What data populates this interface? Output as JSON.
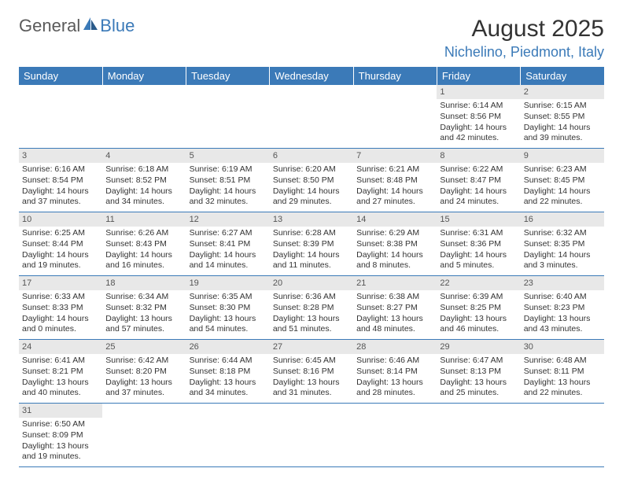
{
  "logo": {
    "text1": "General",
    "text2": "Blue"
  },
  "title": "August 2025",
  "location": "Nichelino, Piedmont, Italy",
  "headers": [
    "Sunday",
    "Monday",
    "Tuesday",
    "Wednesday",
    "Thursday",
    "Friday",
    "Saturday"
  ],
  "colors": {
    "accent": "#3b7ab8",
    "header_text": "#ffffff",
    "daynum_bg": "#e8e8e8",
    "text": "#333333",
    "logo_gray": "#5a5a5a"
  },
  "weeks": [
    [
      null,
      null,
      null,
      null,
      null,
      {
        "n": "1",
        "sunrise": "Sunrise: 6:14 AM",
        "sunset": "Sunset: 8:56 PM",
        "d1": "Daylight: 14 hours",
        "d2": "and 42 minutes."
      },
      {
        "n": "2",
        "sunrise": "Sunrise: 6:15 AM",
        "sunset": "Sunset: 8:55 PM",
        "d1": "Daylight: 14 hours",
        "d2": "and 39 minutes."
      }
    ],
    [
      {
        "n": "3",
        "sunrise": "Sunrise: 6:16 AM",
        "sunset": "Sunset: 8:54 PM",
        "d1": "Daylight: 14 hours",
        "d2": "and 37 minutes."
      },
      {
        "n": "4",
        "sunrise": "Sunrise: 6:18 AM",
        "sunset": "Sunset: 8:52 PM",
        "d1": "Daylight: 14 hours",
        "d2": "and 34 minutes."
      },
      {
        "n": "5",
        "sunrise": "Sunrise: 6:19 AM",
        "sunset": "Sunset: 8:51 PM",
        "d1": "Daylight: 14 hours",
        "d2": "and 32 minutes."
      },
      {
        "n": "6",
        "sunrise": "Sunrise: 6:20 AM",
        "sunset": "Sunset: 8:50 PM",
        "d1": "Daylight: 14 hours",
        "d2": "and 29 minutes."
      },
      {
        "n": "7",
        "sunrise": "Sunrise: 6:21 AM",
        "sunset": "Sunset: 8:48 PM",
        "d1": "Daylight: 14 hours",
        "d2": "and 27 minutes."
      },
      {
        "n": "8",
        "sunrise": "Sunrise: 6:22 AM",
        "sunset": "Sunset: 8:47 PM",
        "d1": "Daylight: 14 hours",
        "d2": "and 24 minutes."
      },
      {
        "n": "9",
        "sunrise": "Sunrise: 6:23 AM",
        "sunset": "Sunset: 8:45 PM",
        "d1": "Daylight: 14 hours",
        "d2": "and 22 minutes."
      }
    ],
    [
      {
        "n": "10",
        "sunrise": "Sunrise: 6:25 AM",
        "sunset": "Sunset: 8:44 PM",
        "d1": "Daylight: 14 hours",
        "d2": "and 19 minutes."
      },
      {
        "n": "11",
        "sunrise": "Sunrise: 6:26 AM",
        "sunset": "Sunset: 8:43 PM",
        "d1": "Daylight: 14 hours",
        "d2": "and 16 minutes."
      },
      {
        "n": "12",
        "sunrise": "Sunrise: 6:27 AM",
        "sunset": "Sunset: 8:41 PM",
        "d1": "Daylight: 14 hours",
        "d2": "and 14 minutes."
      },
      {
        "n": "13",
        "sunrise": "Sunrise: 6:28 AM",
        "sunset": "Sunset: 8:39 PM",
        "d1": "Daylight: 14 hours",
        "d2": "and 11 minutes."
      },
      {
        "n": "14",
        "sunrise": "Sunrise: 6:29 AM",
        "sunset": "Sunset: 8:38 PM",
        "d1": "Daylight: 14 hours",
        "d2": "and 8 minutes."
      },
      {
        "n": "15",
        "sunrise": "Sunrise: 6:31 AM",
        "sunset": "Sunset: 8:36 PM",
        "d1": "Daylight: 14 hours",
        "d2": "and 5 minutes."
      },
      {
        "n": "16",
        "sunrise": "Sunrise: 6:32 AM",
        "sunset": "Sunset: 8:35 PM",
        "d1": "Daylight: 14 hours",
        "d2": "and 3 minutes."
      }
    ],
    [
      {
        "n": "17",
        "sunrise": "Sunrise: 6:33 AM",
        "sunset": "Sunset: 8:33 PM",
        "d1": "Daylight: 14 hours",
        "d2": "and 0 minutes."
      },
      {
        "n": "18",
        "sunrise": "Sunrise: 6:34 AM",
        "sunset": "Sunset: 8:32 PM",
        "d1": "Daylight: 13 hours",
        "d2": "and 57 minutes."
      },
      {
        "n": "19",
        "sunrise": "Sunrise: 6:35 AM",
        "sunset": "Sunset: 8:30 PM",
        "d1": "Daylight: 13 hours",
        "d2": "and 54 minutes."
      },
      {
        "n": "20",
        "sunrise": "Sunrise: 6:36 AM",
        "sunset": "Sunset: 8:28 PM",
        "d1": "Daylight: 13 hours",
        "d2": "and 51 minutes."
      },
      {
        "n": "21",
        "sunrise": "Sunrise: 6:38 AM",
        "sunset": "Sunset: 8:27 PM",
        "d1": "Daylight: 13 hours",
        "d2": "and 48 minutes."
      },
      {
        "n": "22",
        "sunrise": "Sunrise: 6:39 AM",
        "sunset": "Sunset: 8:25 PM",
        "d1": "Daylight: 13 hours",
        "d2": "and 46 minutes."
      },
      {
        "n": "23",
        "sunrise": "Sunrise: 6:40 AM",
        "sunset": "Sunset: 8:23 PM",
        "d1": "Daylight: 13 hours",
        "d2": "and 43 minutes."
      }
    ],
    [
      {
        "n": "24",
        "sunrise": "Sunrise: 6:41 AM",
        "sunset": "Sunset: 8:21 PM",
        "d1": "Daylight: 13 hours",
        "d2": "and 40 minutes."
      },
      {
        "n": "25",
        "sunrise": "Sunrise: 6:42 AM",
        "sunset": "Sunset: 8:20 PM",
        "d1": "Daylight: 13 hours",
        "d2": "and 37 minutes."
      },
      {
        "n": "26",
        "sunrise": "Sunrise: 6:44 AM",
        "sunset": "Sunset: 8:18 PM",
        "d1": "Daylight: 13 hours",
        "d2": "and 34 minutes."
      },
      {
        "n": "27",
        "sunrise": "Sunrise: 6:45 AM",
        "sunset": "Sunset: 8:16 PM",
        "d1": "Daylight: 13 hours",
        "d2": "and 31 minutes."
      },
      {
        "n": "28",
        "sunrise": "Sunrise: 6:46 AM",
        "sunset": "Sunset: 8:14 PM",
        "d1": "Daylight: 13 hours",
        "d2": "and 28 minutes."
      },
      {
        "n": "29",
        "sunrise": "Sunrise: 6:47 AM",
        "sunset": "Sunset: 8:13 PM",
        "d1": "Daylight: 13 hours",
        "d2": "and 25 minutes."
      },
      {
        "n": "30",
        "sunrise": "Sunrise: 6:48 AM",
        "sunset": "Sunset: 8:11 PM",
        "d1": "Daylight: 13 hours",
        "d2": "and 22 minutes."
      }
    ],
    [
      {
        "n": "31",
        "sunrise": "Sunrise: 6:50 AM",
        "sunset": "Sunset: 8:09 PM",
        "d1": "Daylight: 13 hours",
        "d2": "and 19 minutes."
      },
      null,
      null,
      null,
      null,
      null,
      null
    ]
  ]
}
